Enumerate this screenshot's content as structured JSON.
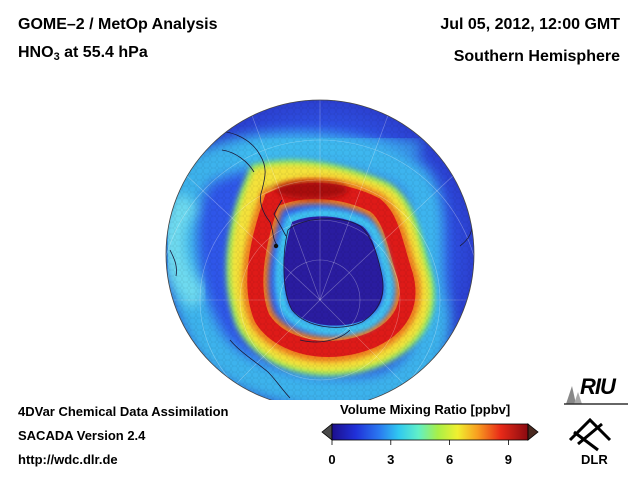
{
  "header": {
    "title_line1": "GOME–2 / MetOp Analysis",
    "title_line2_prefix": "HNO",
    "title_line2_sub": "3",
    "title_line2_suffix": " at 55.4 hPa",
    "date": "Jul 05, 2012, 12:00 GMT",
    "region": "Southern Hemisphere"
  },
  "footer": {
    "line1": "4DVar Chemical Data Assimilation",
    "line2": "SACADA Version 2.4",
    "line3": "http://wdc.dlr.de"
  },
  "colorbar": {
    "title": "Volume Mixing Ratio [ppbv]",
    "min": 0,
    "max": 10,
    "ticks": [
      {
        "value": 0,
        "label": "0"
      },
      {
        "value": 3,
        "label": "3"
      },
      {
        "value": 6,
        "label": "6"
      },
      {
        "value": 9,
        "label": "9"
      }
    ]
  },
  "logos": {
    "riu": "RIU",
    "dlr": "DLR"
  },
  "map": {
    "projection": "orthographic, south pole view",
    "colors": {
      "ocean_background": "#2a3bd6",
      "polar_low": "#2a1a9a",
      "ring_red": "#e01818",
      "ring_yellow": "#f0e030",
      "ring_cyan": "#30d8e8"
    }
  }
}
